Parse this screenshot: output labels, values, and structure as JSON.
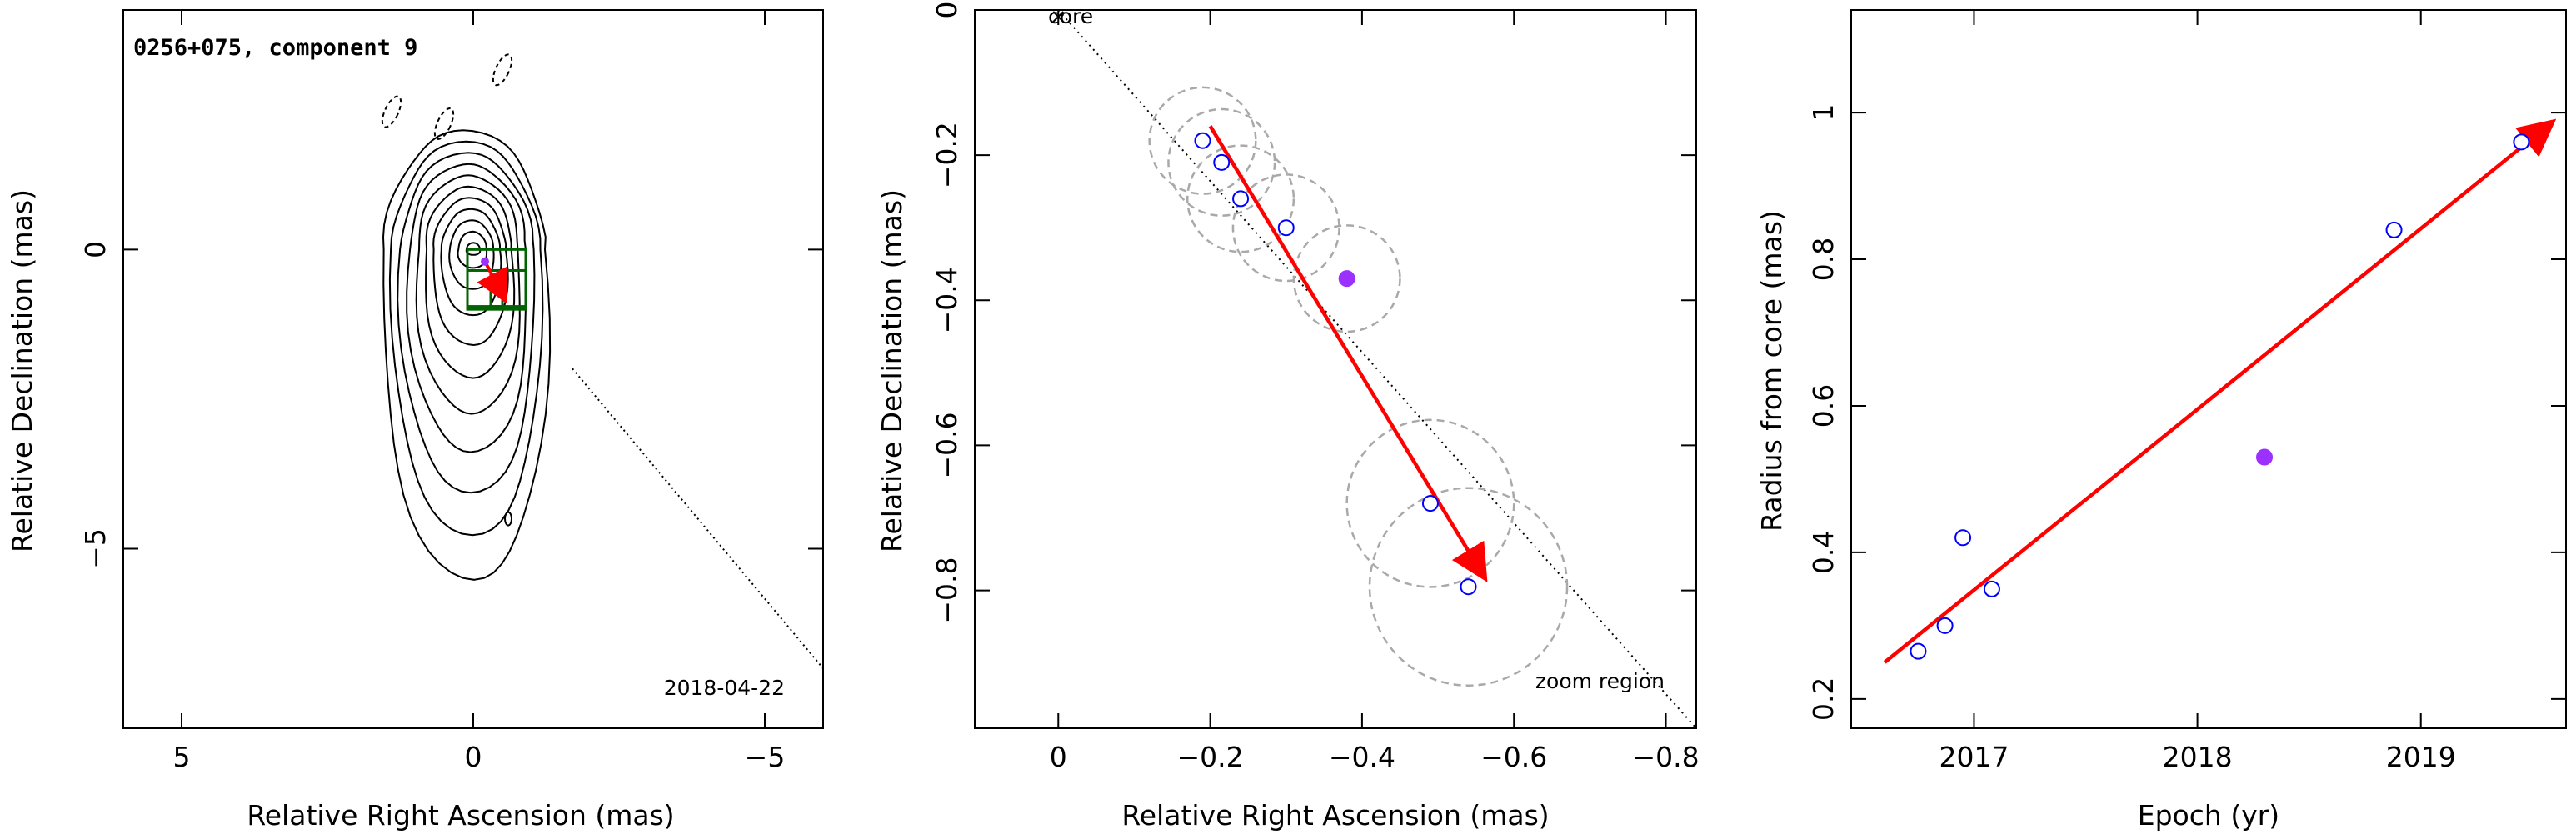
{
  "chart_data": [
    {
      "type": "scatter",
      "title": "0256+075, component 9",
      "epoch_label": "2018-04-22",
      "xlabel": "Relative Right Ascension (mas)",
      "ylabel": "Relative Declination (mas)",
      "xlim": [
        6,
        -6
      ],
      "ylim": [
        -8,
        4
      ],
      "xticks": [
        5,
        0,
        -5
      ],
      "yticks": [
        0,
        -5
      ],
      "grid": false,
      "core": [
        0,
        0
      ],
      "contour_levels": 11,
      "boxes": [
        {
          "ra": [
            0.1,
            -0.9
          ],
          "dec": [
            0.0,
            -1.0
          ]
        },
        {
          "ra": [
            -0.3,
            -0.9
          ],
          "dec": [
            -0.35,
            -0.95
          ]
        },
        {
          "ra": [
            0.1,
            -0.5
          ],
          "dec": [
            -0.35,
            -0.95
          ]
        }
      ],
      "motion_vector": {
        "from": [
          -0.19,
          -0.18
        ],
        "to": [
          -0.53,
          -0.81
        ]
      },
      "jet_axis": {
        "from": [
          0,
          0
        ],
        "to": [
          -6,
          -7.0
        ]
      },
      "negative_contours": [
        {
          "ra": 1.4,
          "dec": 2.3
        },
        {
          "ra": 0.5,
          "dec": 2.1
        },
        {
          "ra": -0.5,
          "dec": 3.0
        }
      ]
    },
    {
      "type": "scatter",
      "title": "",
      "xlabel": "Relative Right Ascension (mas)",
      "ylabel": "Relative Declination (mas)",
      "xlim": [
        0.11,
        -0.84
      ],
      "ylim": [
        -0.99,
        0.0
      ],
      "xticks": [
        0,
        -0.2,
        -0.4,
        -0.6,
        -0.8
      ],
      "yticks": [
        0,
        -0.2,
        -0.4,
        -0.6,
        -0.8
      ],
      "grid": false,
      "core_label": "core",
      "zoom_label": "zoom region",
      "points": [
        {
          "ra": -0.19,
          "dec": -0.18,
          "r": 0.07,
          "filled": false
        },
        {
          "ra": -0.215,
          "dec": -0.21,
          "r": 0.07,
          "filled": false
        },
        {
          "ra": -0.24,
          "dec": -0.26,
          "r": 0.07,
          "filled": false
        },
        {
          "ra": -0.3,
          "dec": -0.3,
          "r": 0.07,
          "filled": false
        },
        {
          "ra": -0.38,
          "dec": -0.37,
          "r": 0.07,
          "filled": true
        },
        {
          "ra": -0.49,
          "dec": -0.68,
          "r": 0.11,
          "filled": false
        },
        {
          "ra": -0.54,
          "dec": -0.795,
          "r": 0.13,
          "filled": false
        }
      ],
      "motion_vector": {
        "from": [
          -0.2,
          -0.16
        ],
        "to": [
          -0.56,
          -0.78
        ]
      },
      "jet_axis": {
        "from": [
          0,
          0
        ],
        "to": [
          -0.84,
          -0.99
        ]
      }
    },
    {
      "type": "scatter",
      "title": "",
      "xlabel": "Epoch (yr)",
      "ylabel": "Radius from core (mas)",
      "xlim": [
        2016.45,
        2019.65
      ],
      "ylim": [
        0.16,
        1.14
      ],
      "xticks": [
        2017,
        2018,
        2019
      ],
      "yticks": [
        0.2,
        0.4,
        0.6,
        0.8,
        1
      ],
      "ytick_labels": [
        "0.2",
        "0.4",
        "0.6",
        "0.8",
        "1"
      ],
      "grid": false,
      "points": [
        {
          "x": 2016.75,
          "y": 0.265,
          "filled": false
        },
        {
          "x": 2016.87,
          "y": 0.3,
          "filled": false
        },
        {
          "x": 2016.95,
          "y": 0.42,
          "filled": false
        },
        {
          "x": 2017.08,
          "y": 0.35,
          "filled": false
        },
        {
          "x": 2018.3,
          "y": 0.53,
          "filled": true
        },
        {
          "x": 2018.88,
          "y": 0.84,
          "filled": false
        },
        {
          "x": 2019.45,
          "y": 0.96,
          "filled": false
        }
      ],
      "fit_line": {
        "from": [
          2016.6,
          0.25
        ],
        "to": [
          2019.58,
          0.985
        ]
      }
    }
  ],
  "colors": {
    "vector": "#ff0000",
    "open_point": "#0000ff",
    "filled_point": "#9b30ff",
    "box": "#006400",
    "circle": "#a9a9a9"
  }
}
